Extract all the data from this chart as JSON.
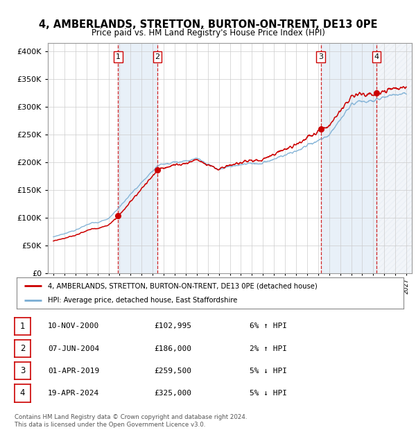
{
  "title": "4, AMBERLANDS, STRETTON, BURTON-ON-TRENT, DE13 0PE",
  "subtitle": "Price paid vs. HM Land Registry's House Price Index (HPI)",
  "ytick_values": [
    0,
    50000,
    100000,
    150000,
    200000,
    250000,
    300000,
    350000,
    400000
  ],
  "ylim": [
    0,
    415000
  ],
  "xlim_start": 1994.5,
  "xlim_end": 2027.5,
  "xticks": [
    1995,
    1996,
    1997,
    1998,
    1999,
    2000,
    2001,
    2002,
    2003,
    2004,
    2005,
    2006,
    2007,
    2008,
    2009,
    2010,
    2011,
    2012,
    2013,
    2014,
    2015,
    2016,
    2017,
    2018,
    2019,
    2020,
    2021,
    2022,
    2023,
    2024,
    2025,
    2026,
    2027
  ],
  "sale_points": [
    {
      "num": 1,
      "year": 2000.87,
      "price": 102995,
      "label": "1"
    },
    {
      "num": 2,
      "year": 2004.44,
      "price": 186000,
      "label": "2"
    },
    {
      "num": 3,
      "year": 2019.25,
      "price": 259500,
      "label": "3"
    },
    {
      "num": 4,
      "year": 2024.3,
      "price": 325000,
      "label": "4"
    }
  ],
  "legend_red_label": "4, AMBERLANDS, STRETTON, BURTON-ON-TRENT, DE13 0PE (detached house)",
  "legend_blue_label": "HPI: Average price, detached house, East Staffordshire",
  "table_rows": [
    {
      "num": "1",
      "date": "10-NOV-2000",
      "price": "£102,995",
      "change": "6% ↑ HPI"
    },
    {
      "num": "2",
      "date": "07-JUN-2004",
      "price": "£186,000",
      "change": "2% ↑ HPI"
    },
    {
      "num": "3",
      "date": "01-APR-2019",
      "price": "£259,500",
      "change": "5% ↓ HPI"
    },
    {
      "num": "4",
      "date": "19-APR-2024",
      "price": "£325,000",
      "change": "5% ↓ HPI"
    }
  ],
  "footer": "Contains HM Land Registry data © Crown copyright and database right 2024.\nThis data is licensed under the Open Government Licence v3.0.",
  "bg_color": "#ffffff",
  "grid_color": "#cccccc",
  "hpi_line_color": "#7aaed4",
  "price_line_color": "#cc0000",
  "sale_marker_color": "#cc0000",
  "shade_color": "#ddeeff"
}
